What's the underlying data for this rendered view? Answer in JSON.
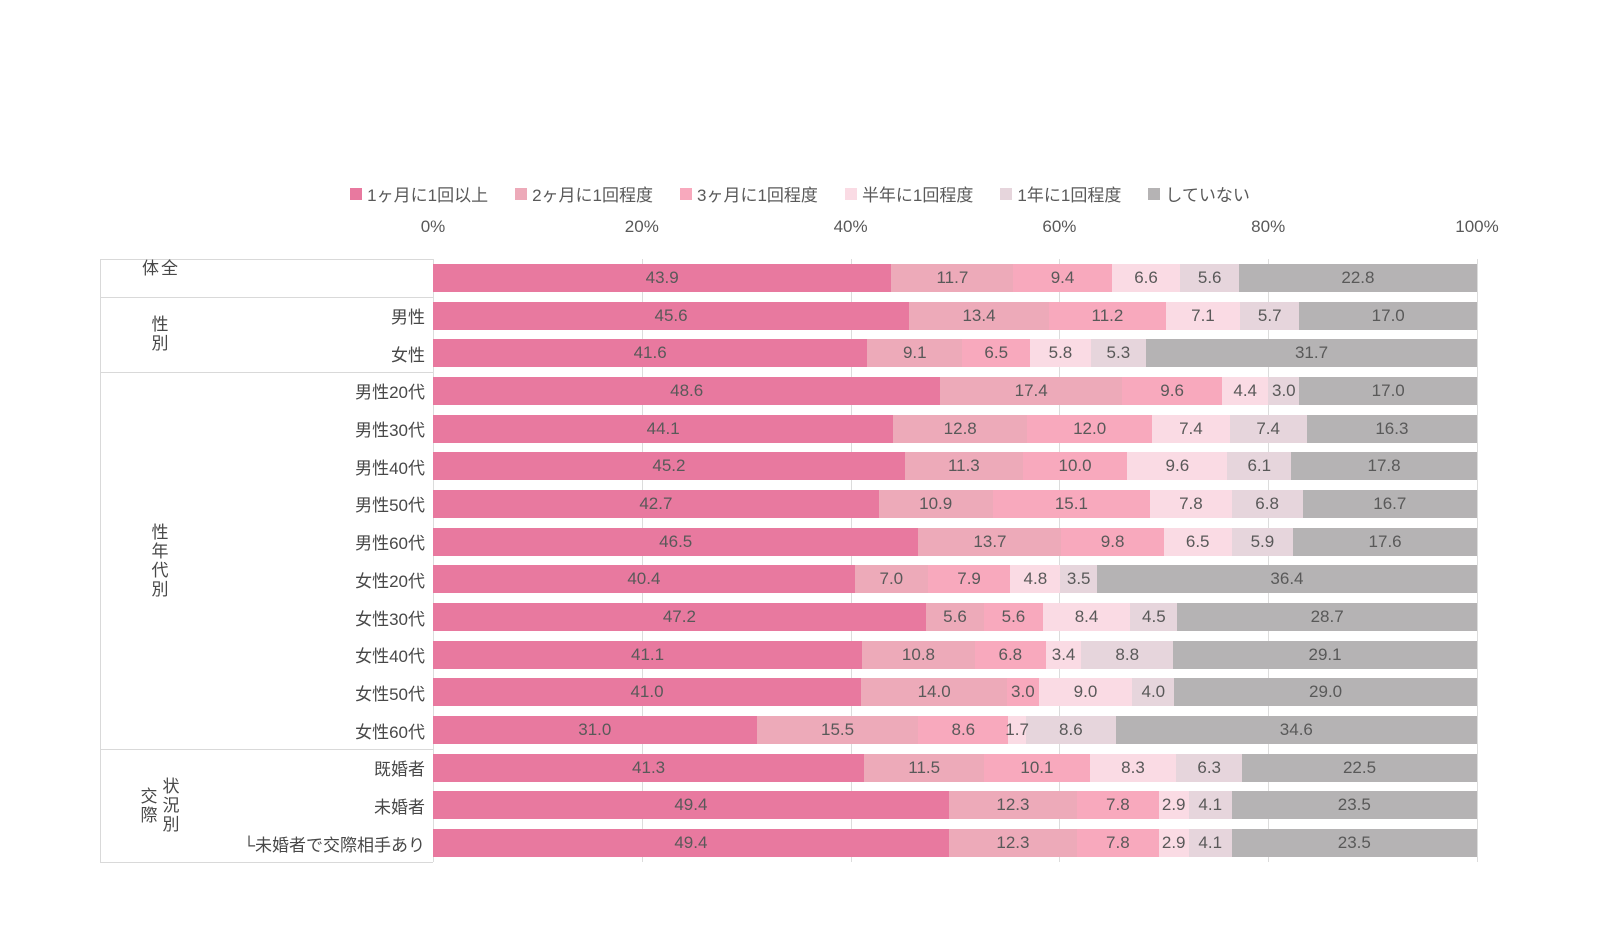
{
  "colors": {
    "background": "#ffffff",
    "grid_line": "#dcdcdc",
    "table_border": "#d9d9d9",
    "axis_text": "#595959",
    "value_text": "#595959",
    "label_text": "#484848"
  },
  "axis": {
    "ticks": [
      "0%",
      "20%",
      "40%",
      "60%",
      "80%",
      "100%"
    ]
  },
  "chart_data": {
    "type": "bar",
    "variant": "horizontal-stacked-100",
    "value_unit": "%",
    "xlim": [
      0,
      100
    ],
    "x_ticks": [
      "0%",
      "20%",
      "40%",
      "60%",
      "80%",
      "100%"
    ],
    "legend_position": "top",
    "grid": true,
    "categories": [
      "全体",
      "男性",
      "女性",
      "男性20代",
      "男性30代",
      "男性40代",
      "男性50代",
      "男性60代",
      "女性20代",
      "女性30代",
      "女性40代",
      "女性50代",
      "女性60代",
      "既婚者",
      "未婚者",
      "└未婚者で交際相手あり"
    ],
    "groups": [
      {
        "label": "全体",
        "label_columns": [
          "全体"
        ],
        "start": 0,
        "count": 1,
        "show_row_labels": false
      },
      {
        "label": "性別",
        "label_columns": [
          "性別"
        ],
        "start": 1,
        "count": 2,
        "show_row_labels": true
      },
      {
        "label": "性年代別",
        "label_columns": [
          "性年代別"
        ],
        "start": 3,
        "count": 10,
        "show_row_labels": true
      },
      {
        "label": "交際状況別",
        "label_columns": [
          "交際",
          "状況別"
        ],
        "start": 13,
        "count": 3,
        "show_row_labels": true
      }
    ],
    "series": [
      {
        "name": "1ヶ月に1回以上",
        "color": "#e8799f",
        "values": [
          43.9,
          45.6,
          41.6,
          48.6,
          44.1,
          45.2,
          42.7,
          46.5,
          40.4,
          47.2,
          41.1,
          41.0,
          31.0,
          41.3,
          49.4,
          49.4
        ]
      },
      {
        "name": "2ヶ月に1回程度",
        "color": "#edaab9",
        "values": [
          11.7,
          13.4,
          9.1,
          17.4,
          12.8,
          11.3,
          10.9,
          13.7,
          7.0,
          5.6,
          10.8,
          14.0,
          15.5,
          11.5,
          12.3,
          12.3
        ]
      },
      {
        "name": "3ヶ月に1回程度",
        "color": "#f8a9bd",
        "values": [
          9.4,
          11.2,
          6.5,
          9.6,
          12.0,
          10.0,
          15.1,
          9.8,
          7.9,
          5.6,
          6.8,
          3.0,
          8.6,
          10.1,
          7.8,
          7.8
        ]
      },
      {
        "name": "半年に1回程度",
        "color": "#fadbe4",
        "values": [
          6.6,
          7.1,
          5.8,
          4.4,
          7.4,
          9.6,
          7.8,
          6.5,
          4.8,
          8.4,
          3.4,
          9.0,
          1.7,
          8.3,
          2.9,
          2.9
        ]
      },
      {
        "name": "1年に1回程度",
        "color": "#e6d5dc",
        "values": [
          5.6,
          5.7,
          5.3,
          3.0,
          7.4,
          6.1,
          6.8,
          5.9,
          3.5,
          4.5,
          8.8,
          4.0,
          8.6,
          6.3,
          4.1,
          4.1
        ]
      },
      {
        "name": "していない",
        "color": "#b5b3b4",
        "values": [
          22.8,
          17.0,
          31.7,
          17.0,
          16.3,
          17.8,
          16.7,
          17.6,
          36.4,
          28.7,
          29.1,
          29.0,
          34.6,
          22.5,
          23.5,
          23.5
        ]
      }
    ]
  }
}
